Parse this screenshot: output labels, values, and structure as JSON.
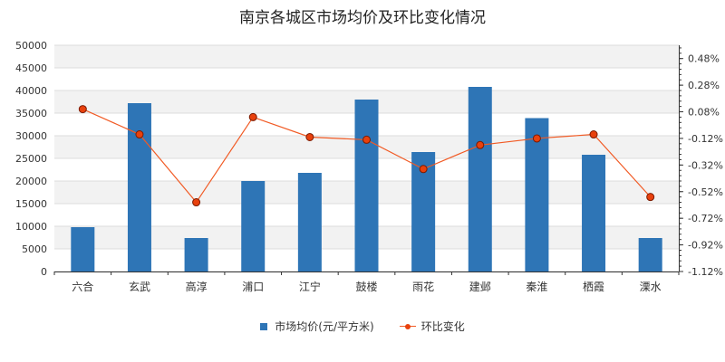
{
  "chart_data": {
    "type": "bar+line",
    "title": "南京各城区市场均价及环比变化情况",
    "categories": [
      "六合",
      "玄武",
      "高淳",
      "浦口",
      "江宁",
      "鼓楼",
      "雨花",
      "建邺",
      "秦淮",
      "栖霞",
      "溧水"
    ],
    "series": [
      {
        "name": "市场均价(元/平方米)",
        "type": "bar",
        "axis": "left",
        "color": "#2e75b6",
        "values": [
          9800,
          37200,
          7400,
          20000,
          21800,
          38000,
          26400,
          40800,
          33900,
          25800,
          7400
        ]
      },
      {
        "name": "环比变化",
        "type": "line",
        "axis": "right",
        "color": "#f15a24",
        "marker_fill": "#e8410d",
        "marker_stroke": "#7a1a00",
        "values": [
          0.1,
          -0.09,
          -0.6,
          0.04,
          -0.11,
          -0.13,
          -0.35,
          -0.17,
          -0.12,
          -0.09,
          -0.56
        ]
      }
    ],
    "left_axis": {
      "min": 0,
      "max": 50000,
      "step": 5000
    },
    "right_axis": {
      "min": -1.12,
      "max": 0.58,
      "ticks": [
        "0.48%",
        "0.28%",
        "0.08%",
        "-0.12%",
        "-0.32%",
        "-0.52%",
        "-0.72%",
        "-0.92%",
        "-1.12%"
      ],
      "tick_values": [
        0.48,
        0.28,
        0.08,
        -0.12,
        -0.32,
        -0.52,
        -0.72,
        -0.92,
        -1.12
      ]
    },
    "grid": true,
    "legend_position": "bottom-center"
  }
}
